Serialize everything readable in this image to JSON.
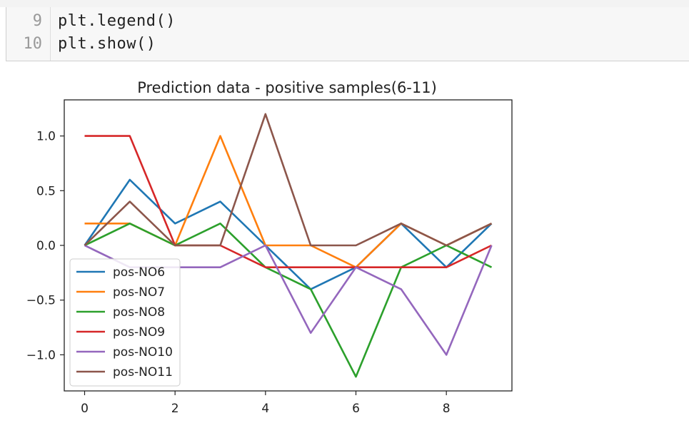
{
  "code_cell": {
    "lines": [
      {
        "number": "9",
        "code": "plt.legend()"
      },
      {
        "number": "10",
        "code": "plt.show()"
      }
    ]
  },
  "colors": {
    "pos-NO6": "#1f77b4",
    "pos-NO7": "#ff7f0e",
    "pos-NO8": "#2ca02c",
    "pos-NO9": "#d62728",
    "pos-NO10": "#9467bd",
    "pos-NO11": "#8c564b"
  },
  "chart_data": {
    "type": "line",
    "title": "Prediction data - positive samples(6-11)",
    "xlabel": "",
    "ylabel": "",
    "x": [
      0,
      1,
      2,
      3,
      4,
      5,
      6,
      7,
      8,
      9
    ],
    "xlim": [
      -0.45,
      9.45
    ],
    "ylim": [
      -1.33,
      1.33
    ],
    "xticks": [
      0,
      2,
      4,
      6,
      8
    ],
    "xtick_labels": [
      "0",
      "2",
      "4",
      "6",
      "8"
    ],
    "yticks": [
      1.0,
      0.5,
      0.0,
      -0.5,
      -1.0
    ],
    "ytick_labels": [
      "1.0",
      "0.5",
      "0.0",
      "−0.5",
      "−1.0"
    ],
    "grid": false,
    "legend_position": "lower-left",
    "series": [
      {
        "name": "pos-NO6",
        "values": [
          0,
          0.6,
          0.2,
          0.4,
          0,
          -0.4,
          -0.2,
          0.2,
          -0.2,
          0.2
        ]
      },
      {
        "name": "pos-NO7",
        "values": [
          0.2,
          0.2,
          0,
          1.0,
          0,
          0,
          -0.2,
          0.2,
          0,
          0.2
        ]
      },
      {
        "name": "pos-NO8",
        "values": [
          0,
          0.2,
          0,
          0.2,
          -0.2,
          -0.4,
          -1.2,
          -0.2,
          0,
          -0.2
        ]
      },
      {
        "name": "pos-NO9",
        "values": [
          1.0,
          1.0,
          0,
          0,
          -0.2,
          -0.2,
          -0.2,
          -0.2,
          -0.2,
          0
        ]
      },
      {
        "name": "pos-NO10",
        "values": [
          0,
          -0.2,
          -0.2,
          -0.2,
          0,
          -0.8,
          -0.2,
          -0.4,
          -1.0,
          0
        ]
      },
      {
        "name": "pos-NO11",
        "values": [
          0,
          0.4,
          0,
          0,
          1.2,
          0,
          0,
          0.2,
          0,
          0.2
        ]
      }
    ]
  }
}
